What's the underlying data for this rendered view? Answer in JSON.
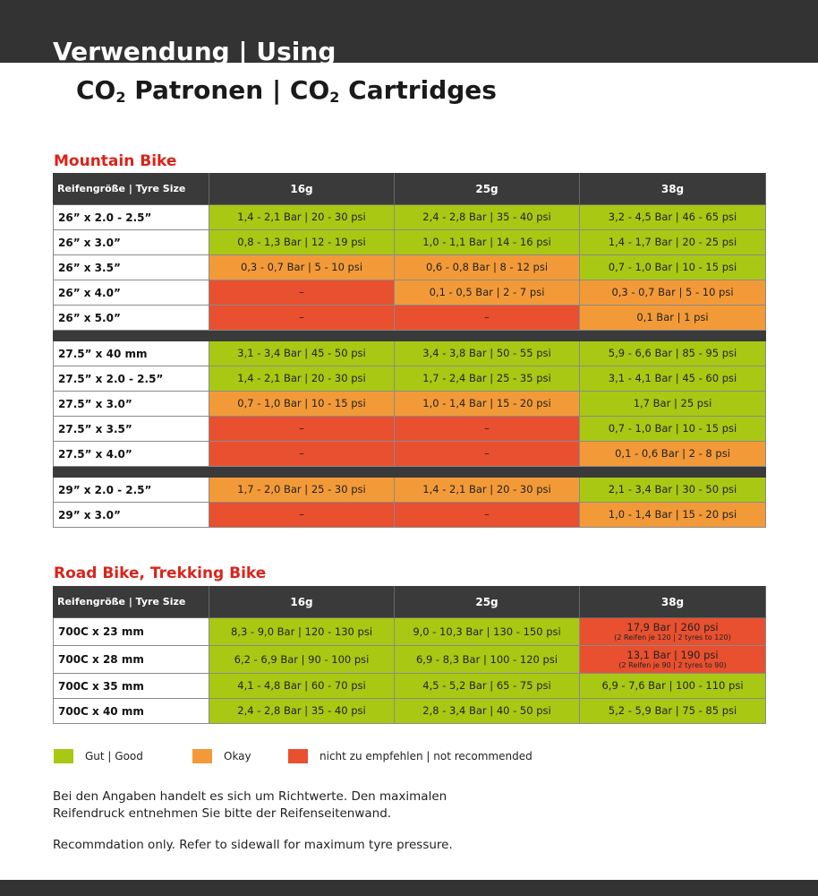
{
  "header": {
    "title": "Verwendung | Using",
    "subtitle_parts": [
      "CO",
      "2",
      " Patronen | CO",
      "2",
      " Cartridges"
    ]
  },
  "mountain_bike": {
    "title": "Mountain Bike",
    "columns": [
      "Reifengröße | Tyre Size",
      "16g",
      "25g",
      "38g"
    ],
    "groups": [
      [
        {
          "size": "26” x 2.0 - 2.5”",
          "cells": [
            {
              "text": "1,4 - 2,1 Bar | 20 - 30 psi",
              "color": "#a9c813"
            },
            {
              "text": "2,4 - 2,8 Bar | 35 - 40 psi",
              "color": "#a9c813"
            },
            {
              "text": "3,2 - 4,5 Bar | 46 - 65 psi",
              "color": "#a9c813"
            }
          ]
        },
        {
          "size": "26” x 3.0”",
          "cells": [
            {
              "text": "0,8 - 1,3 Bar | 12 - 19 psi",
              "color": "#a9c813"
            },
            {
              "text": "1,0 - 1,1 Bar | 14 - 16 psi",
              "color": "#a9c813"
            },
            {
              "text": "1,4 - 1,7 Bar | 20 - 25 psi",
              "color": "#a9c813"
            }
          ]
        },
        {
          "size": "26” x 3.5”",
          "cells": [
            {
              "text": "0,3 - 0,7 Bar | 5 - 10 psi",
              "color": "#f39a38"
            },
            {
              "text": "0,6 - 0,8 Bar | 8 - 12 psi",
              "color": "#f39a38"
            },
            {
              "text": "0,7 - 1,0 Bar | 10 - 15 psi",
              "color": "#a9c813"
            }
          ]
        },
        {
          "size": "26” x 4.0”",
          "cells": [
            {
              "text": "–",
              "color": "#e8502f"
            },
            {
              "text": "0,1 - 0,5 Bar | 2 - 7 psi",
              "color": "#f39a38"
            },
            {
              "text": "0,3 - 0,7 Bar | 5 - 10 psi",
              "color": "#f39a38"
            }
          ]
        },
        {
          "size": "26” x 5.0”",
          "cells": [
            {
              "text": "–",
              "color": "#e8502f"
            },
            {
              "text": "–",
              "color": "#e8502f"
            },
            {
              "text": "0,1 Bar | 1 psi",
              "color": "#f39a38"
            }
          ]
        }
      ],
      [
        {
          "size": "27.5” x 40 mm",
          "cells": [
            {
              "text": "3,1 - 3,4 Bar | 45 - 50 psi",
              "color": "#a9c813"
            },
            {
              "text": "3,4 - 3,8 Bar | 50 - 55 psi",
              "color": "#a9c813"
            },
            {
              "text": "5,9 - 6,6 Bar | 85 - 95 psi",
              "color": "#a9c813"
            }
          ]
        },
        {
          "size": "27.5” x 2.0 - 2.5”",
          "cells": [
            {
              "text": "1,4 - 2,1 Bar | 20 - 30 psi",
              "color": "#a9c813"
            },
            {
              "text": "1,7 - 2,4 Bar | 25 - 35 psi",
              "color": "#a9c813"
            },
            {
              "text": "3,1 - 4,1 Bar | 45 - 60 psi",
              "color": "#a9c813"
            }
          ]
        },
        {
          "size": "27.5” x 3.0”",
          "cells": [
            {
              "text": "0,7 - 1,0 Bar | 10 - 15 psi",
              "color": "#f39a38"
            },
            {
              "text": "1,0 - 1,4 Bar | 15 - 20 psi",
              "color": "#f39a38"
            },
            {
              "text": "1,7 Bar | 25 psi",
              "color": "#a9c813"
            }
          ]
        },
        {
          "size": "27.5” x 3.5”",
          "cells": [
            {
              "text": "–",
              "color": "#e8502f"
            },
            {
              "text": "–",
              "color": "#e8502f"
            },
            {
              "text": "0,7 - 1,0 Bar | 10 - 15 psi",
              "color": "#a9c813"
            }
          ]
        },
        {
          "size": "27.5” x 4.0”",
          "cells": [
            {
              "text": "–",
              "color": "#e8502f"
            },
            {
              "text": "–",
              "color": "#e8502f"
            },
            {
              "text": "0,1 - 0,6 Bar | 2 - 8 psi",
              "color": "#f39a38"
            }
          ]
        }
      ],
      [
        {
          "size": "29” x 2.0 - 2.5”",
          "cells": [
            {
              "text": "1,7 - 2,0 Bar | 25 - 30 psi",
              "color": "#f39a38"
            },
            {
              "text": "1,4 - 2,1 Bar | 20 - 30 psi",
              "color": "#f39a38"
            },
            {
              "text": "2,1 - 3,4 Bar | 30 - 50 psi",
              "color": "#a9c813"
            }
          ]
        },
        {
          "size": "29” x 3.0”",
          "cells": [
            {
              "text": "–",
              "color": "#e8502f"
            },
            {
              "text": "–",
              "color": "#e8502f"
            },
            {
              "text": "1,0 - 1,4 Bar | 15 - 20 psi",
              "color": "#f39a38"
            }
          ]
        }
      ]
    ]
  },
  "road_bike": {
    "title": "Road Bike, Trekking Bike",
    "columns": [
      "Reifengröße | Tyre Size",
      "16g",
      "25g",
      "38g"
    ],
    "groups": [
      [
        {
          "size": "700C x 23 mm",
          "cells": [
            {
              "text": "8,3 - 9,0 Bar | 120 - 130 psi",
              "color": "#a9c813"
            },
            {
              "text": "9,0 - 10,3 Bar | 130 - 150 psi",
              "color": "#a9c813"
            },
            {
              "text": "17,9 Bar | 260 psi",
              "note": "(2 Reifen je 120 | 2 tyres to 120)",
              "color": "#e8502f"
            }
          ]
        },
        {
          "size": "700C x 28 mm",
          "cells": [
            {
              "text": "6,2 - 6,9 Bar | 90 - 100 psi",
              "color": "#a9c813"
            },
            {
              "text": "6,9 - 8,3 Bar | 100 - 120 psi",
              "color": "#a9c813"
            },
            {
              "text": "13,1 Bar | 190 psi",
              "note": "(2 Reifen je 90 | 2 tyres to 90)",
              "color": "#e8502f"
            }
          ]
        },
        {
          "size": "700C x 35 mm",
          "cells": [
            {
              "text": "4,1 - 4,8 Bar | 60 - 70 psi",
              "color": "#a9c813"
            },
            {
              "text": "4,5 - 5,2 Bar | 65 - 75 psi",
              "color": "#a9c813"
            },
            {
              "text": "6,9 - 7,6 Bar | 100 - 110 psi",
              "color": "#a9c813"
            }
          ]
        },
        {
          "size": "700C x 40 mm",
          "cells": [
            {
              "text": "2,4 - 2,8 Bar | 35 - 40 psi",
              "color": "#a9c813"
            },
            {
              "text": "2,8 - 3,4 Bar | 40 - 50 psi",
              "color": "#a9c813"
            },
            {
              "text": "5,2 - 5,9 Bar | 75 - 85 psi",
              "color": "#a9c813"
            }
          ]
        }
      ]
    ]
  },
  "legend": [
    {
      "label": "Gut | Good",
      "color": "#a9c813"
    },
    {
      "label": "Okay",
      "color": "#f39a38"
    },
    {
      "label": "nicht zu empfehlen | not recommended",
      "color": "#e8502f"
    }
  ],
  "notes": [
    "Bei den Angaben handelt es sich um Richtwerte. Den maximalen",
    "Reifendruck entnehmen Sie bitte der Reifenseitenwand.",
    "Recommdation only. Refer to sidewall for maximum tyre pressure."
  ]
}
